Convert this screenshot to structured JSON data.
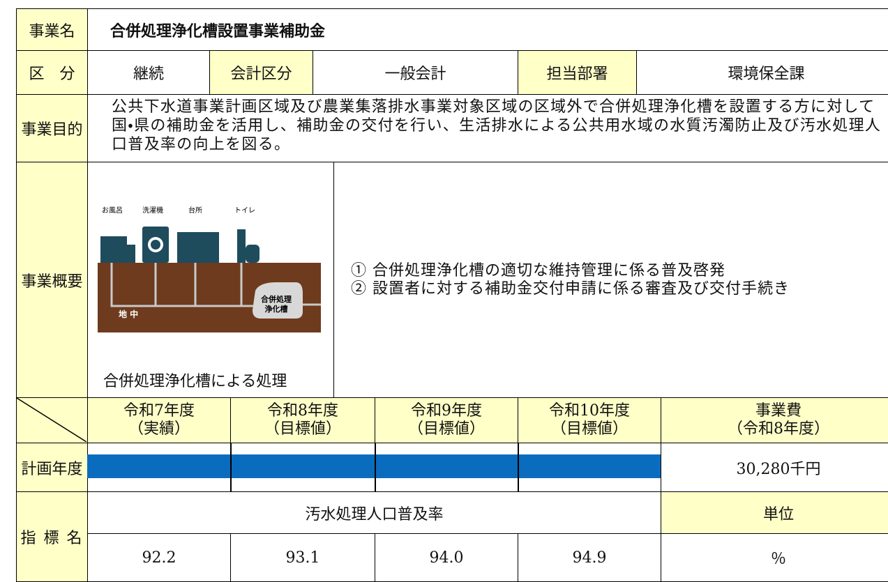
{
  "header": {
    "label": "事業名",
    "title": "合併処理浄化槽設置事業補助金"
  },
  "classification": {
    "label": "区　分",
    "value": "継続",
    "accounting_label": "会計区分",
    "accounting": "一般会計",
    "department_label": "担当部署",
    "department": "環境保全課"
  },
  "purpose": {
    "label": "事業目的",
    "text": "公共下水道事業計画区域及び農業集落排水事業対象区域の区域外で合併処理浄化槽を設置する方に対して国・県の補助金を活用し、補助金の交付を行い、生活排水による公共用水域の水質汚濁防止及び汚水処理人口普及率の向上を図る。"
  },
  "overview": {
    "label": "事業概要",
    "illustration": {
      "labels": [
        "お風呂",
        "洗濯機",
        "台所",
        "トイレ"
      ],
      "tank": [
        "合併処理",
        "浄化槽"
      ],
      "ground": "地 中"
    },
    "caption": "合併処理浄化槽による処理",
    "items": [
      "① 合併処理浄化槽の適切な維持管理に係る普及啓発",
      "② 設置者に対する補助金交付申請に係る審査及び交付手続き"
    ]
  },
  "schedule": {
    "years": [
      {
        "year": "令和7年度",
        "note": "（実績）"
      },
      {
        "year": "令和8年度",
        "note": "（目標値）"
      },
      {
        "year": "令和9年度",
        "note": "（目標値）"
      },
      {
        "year": "令和10年度",
        "note": "（目標値）"
      }
    ],
    "cost_header": {
      "title": "事業費",
      "note": "（令和8年度）"
    },
    "label": "計画年度",
    "cost": "30,280千円"
  },
  "indicator": {
    "label": "指 標 名",
    "name": "汚水処理人口普及率",
    "unit_label": "単位",
    "values": [
      "92.2",
      "93.1",
      "94.0",
      "94.9"
    ],
    "unit": "％"
  }
}
